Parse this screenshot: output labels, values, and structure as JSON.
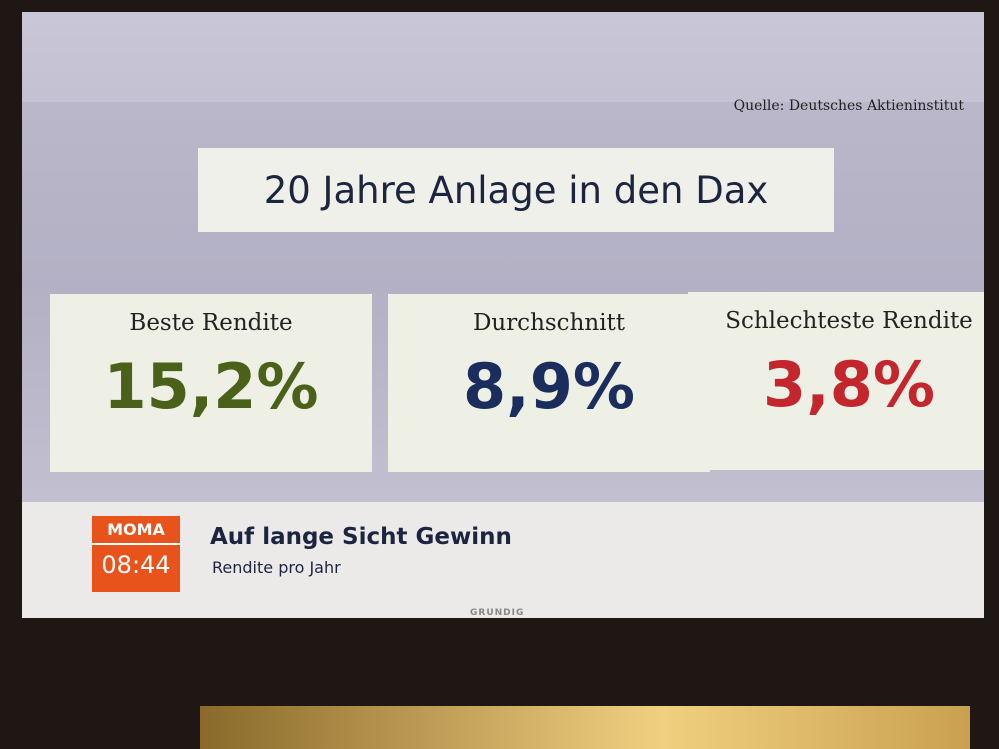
{
  "source": "Quelle: Deutsches Aktieninstitut",
  "title": "20 Jahre Anlage in den Dax",
  "cards": [
    {
      "label": "Beste Rendite",
      "value": "15,2%"
    },
    {
      "label": "Durchschnitt",
      "value": "8,9%"
    },
    {
      "label": "Schlechteste Rendite",
      "value": "3,8%"
    }
  ],
  "lower_third": {
    "logo": "MOMA",
    "time": "08:44",
    "headline": "Auf lange Sicht Gewinn",
    "subline": "Rendite pro Jahr"
  },
  "tv_brand": "GRUNDIG"
}
